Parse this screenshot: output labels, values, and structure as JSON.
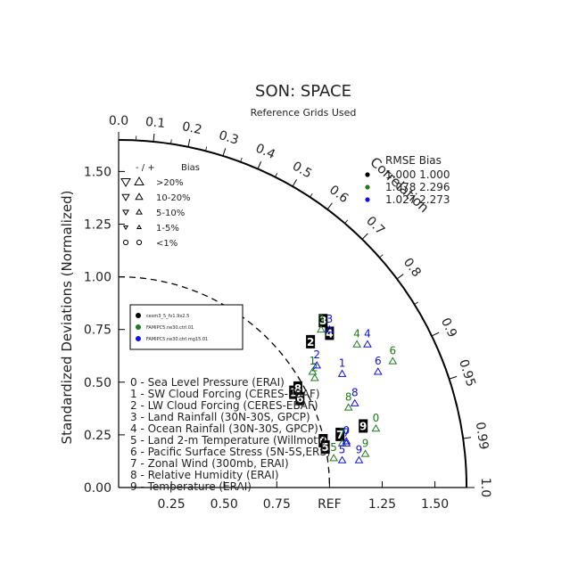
{
  "chart_data": {
    "type": "scatter",
    "title": "SON: SPACE",
    "subtitle": "Reference Grids Used",
    "ylabel": "Standardized Deviations (Normalized)",
    "arc_label": "Correlation",
    "ref_label": "REF",
    "std_ticks": [
      "0.00",
      "0.25",
      "0.50",
      "0.75",
      "1.00",
      "1.25",
      "1.50"
    ],
    "x_ticks": [
      "0.25",
      "0.50",
      "0.75",
      "REF",
      "1.25",
      "1.50"
    ],
    "corr_ticks": [
      "0.0",
      "0.1",
      "0.2",
      "0.3",
      "0.4",
      "0.5",
      "0.6",
      "0.7",
      "0.8",
      "0.9",
      "0.95",
      "0.99",
      "1.0"
    ],
    "corr_values": [
      0.0,
      0.1,
      0.2,
      0.3,
      0.4,
      0.5,
      0.6,
      0.7,
      0.8,
      0.9,
      0.95,
      0.99,
      1.0
    ],
    "max_std": 1.65,
    "bias_legend": {
      "header_sym": "- / +",
      "header": "Bias",
      "rows": [
        {
          "label": ">20%",
          "size": 9
        },
        {
          "label": "10-20%",
          "size": 7
        },
        {
          "label": "5-10%",
          "size": 5.5
        },
        {
          "label": "1-5%",
          "size": 4
        },
        {
          "label": "<1%",
          "size": 0
        }
      ]
    },
    "rmse_table": {
      "header": "RMSE  Bias",
      "rows": [
        {
          "text": "1.000  1.000",
          "color": "#000000"
        },
        {
          "text": "1.078  2.296",
          "color": "#1e7a1e"
        },
        {
          "text": "1.027  2.273",
          "color": "#1010e0"
        }
      ]
    },
    "series": [
      {
        "name": "cesm3_5_fv1.9x2.5",
        "color": "#000000",
        "style": "box",
        "points": [
          {
            "id": "0",
            "x": 0.97,
            "y": 0.22
          },
          {
            "id": "1",
            "x": 0.83,
            "y": 0.45
          },
          {
            "id": "2",
            "x": 0.91,
            "y": 0.69
          },
          {
            "id": "3",
            "x": 0.97,
            "y": 0.79
          },
          {
            "id": "4",
            "x": 1.0,
            "y": 0.73
          },
          {
            "id": "5",
            "x": 0.98,
            "y": 0.19
          },
          {
            "id": "6",
            "x": 0.86,
            "y": 0.42
          },
          {
            "id": "7",
            "x": 1.05,
            "y": 0.25
          },
          {
            "id": "8",
            "x": 0.85,
            "y": 0.47
          },
          {
            "id": "9",
            "x": 1.16,
            "y": 0.29
          }
        ]
      },
      {
        "name": "FAMIPC5.ne30.ctrl.01",
        "color": "#1e7a1e",
        "style": "plain",
        "points": [
          {
            "id": "0",
            "x": 1.22,
            "y": 0.33
          },
          {
            "id": "1",
            "x": 0.92,
            "y": 0.6
          },
          {
            "id": "2",
            "x": 0.93,
            "y": 0.57
          },
          {
            "id": "3",
            "x": 0.96,
            "y": 0.8
          },
          {
            "id": "4",
            "x": 1.13,
            "y": 0.73
          },
          {
            "id": "5",
            "x": 1.02,
            "y": 0.19
          },
          {
            "id": "6",
            "x": 1.3,
            "y": 0.65
          },
          {
            "id": "7",
            "x": 1.06,
            "y": 0.26
          },
          {
            "id": "8",
            "x": 1.09,
            "y": 0.43
          },
          {
            "id": "9",
            "x": 1.17,
            "y": 0.21
          }
        ]
      },
      {
        "name": "FAMIPC5.ne30.ctrl.mg15.01",
        "color": "#1010e0",
        "style": "plain",
        "points": [
          {
            "id": "0",
            "x": 1.08,
            "y": 0.27
          },
          {
            "id": "1",
            "x": 1.06,
            "y": 0.59
          },
          {
            "id": "2",
            "x": 0.94,
            "y": 0.63
          },
          {
            "id": "3",
            "x": 1.0,
            "y": 0.8
          },
          {
            "id": "4",
            "x": 1.18,
            "y": 0.73
          },
          {
            "id": "5",
            "x": 1.06,
            "y": 0.18
          },
          {
            "id": "6",
            "x": 1.23,
            "y": 0.6
          },
          {
            "id": "7",
            "x": 1.08,
            "y": 0.26
          },
          {
            "id": "8",
            "x": 1.12,
            "y": 0.45
          },
          {
            "id": "9",
            "x": 1.14,
            "y": 0.18
          }
        ]
      }
    ],
    "variables": [
      "0 - Sea Level Pressure (ERAI)",
      "1 - SW Cloud Forcing (CERES-EBAF)",
      "2 - LW Cloud Forcing (CERES-EBAF)",
      "3 - Land Rainfall (30N-30S, GPCP)",
      "4 - Ocean Rainfall (30N-30S, GPCP)",
      "5 - Land 2-m Temperature (Willmott)",
      "6 - Pacific Surface Stress (5N-5S,ERS)",
      "7 - Zonal Wind (300mb, ERAI)",
      "8 - Relative Humidity (ERAI)",
      "9 - Temperature (ERAI)"
    ]
  }
}
